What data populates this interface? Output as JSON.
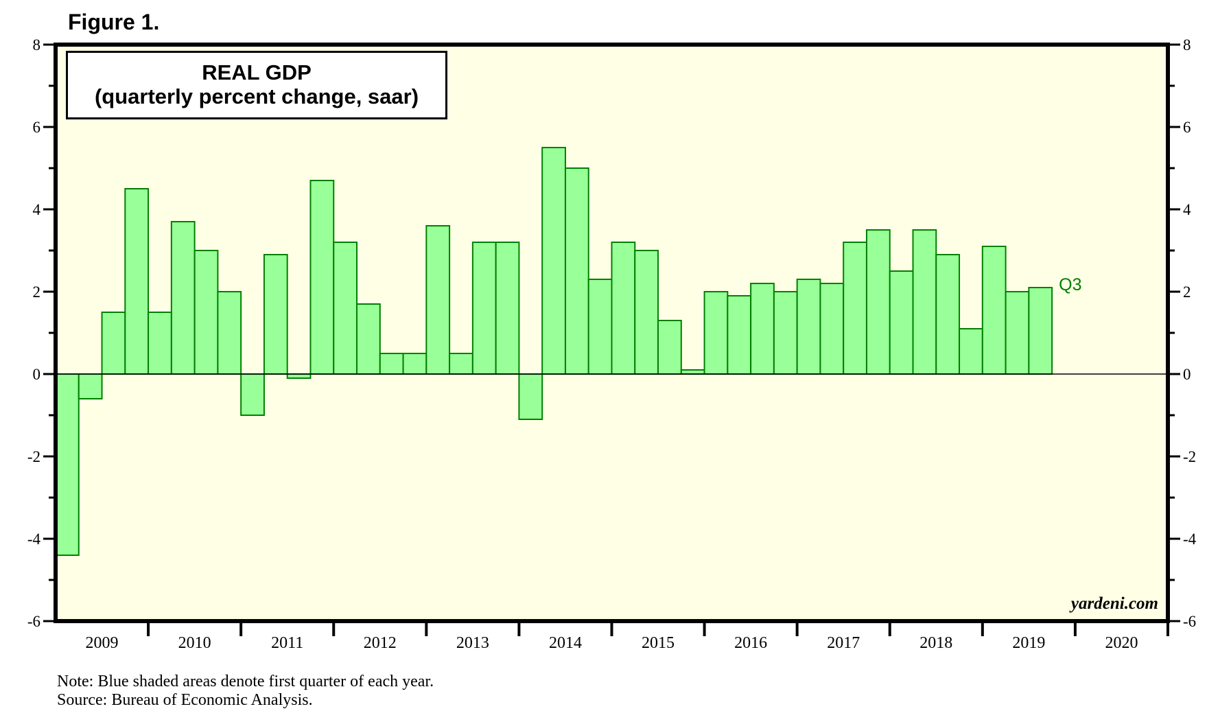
{
  "figure_label": "Figure 1.",
  "chart_data": {
    "type": "bar",
    "title": "REAL GDP",
    "subtitle": "(quarterly percent change, saar)",
    "xlabel": "",
    "ylabel": "",
    "ylim": [
      -6,
      8
    ],
    "yticks": [
      -6,
      -4,
      -2,
      0,
      2,
      4,
      6,
      8
    ],
    "y_minor_step": 1,
    "x_years": [
      "2009",
      "2010",
      "2011",
      "2012",
      "2013",
      "2014",
      "2015",
      "2016",
      "2017",
      "2018",
      "2019",
      "2020"
    ],
    "categories": [
      "2009Q1",
      "2009Q2",
      "2009Q3",
      "2009Q4",
      "2010Q1",
      "2010Q2",
      "2010Q3",
      "2010Q4",
      "2011Q1",
      "2011Q2",
      "2011Q3",
      "2011Q4",
      "2012Q1",
      "2012Q2",
      "2012Q3",
      "2012Q4",
      "2013Q1",
      "2013Q2",
      "2013Q3",
      "2013Q4",
      "2014Q1",
      "2014Q2",
      "2014Q3",
      "2014Q4",
      "2015Q1",
      "2015Q2",
      "2015Q3",
      "2015Q4",
      "2016Q1",
      "2016Q2",
      "2016Q3",
      "2016Q4",
      "2017Q1",
      "2017Q2",
      "2017Q3",
      "2017Q4",
      "2018Q1",
      "2018Q2",
      "2018Q3",
      "2018Q4",
      "2019Q1",
      "2019Q2",
      "2019Q3"
    ],
    "values": [
      -4.4,
      -0.6,
      1.5,
      4.5,
      1.5,
      3.7,
      3.0,
      2.0,
      -1.0,
      2.9,
      -0.1,
      4.7,
      3.2,
      1.7,
      0.5,
      0.5,
      3.6,
      0.5,
      3.2,
      3.2,
      -1.1,
      5.5,
      5.0,
      2.3,
      3.2,
      3.0,
      1.3,
      0.1,
      2.0,
      1.9,
      2.2,
      2.0,
      2.3,
      2.2,
      3.2,
      3.5,
      2.5,
      3.5,
      2.9,
      1.1,
      3.1,
      2.0,
      2.1
    ],
    "last_point_annotation": "Q3",
    "watermark": "yardeni.com",
    "grid": false,
    "legend": "none",
    "colors": {
      "bar_fill": "#99ff99",
      "bar_stroke": "#008000",
      "plot_background": "#ffffe6",
      "annotation": "#008000"
    }
  },
  "notes": {
    "note": "Note: Blue shaded areas denote first quarter of each year.",
    "source": "Source: Bureau of Economic Analysis."
  }
}
